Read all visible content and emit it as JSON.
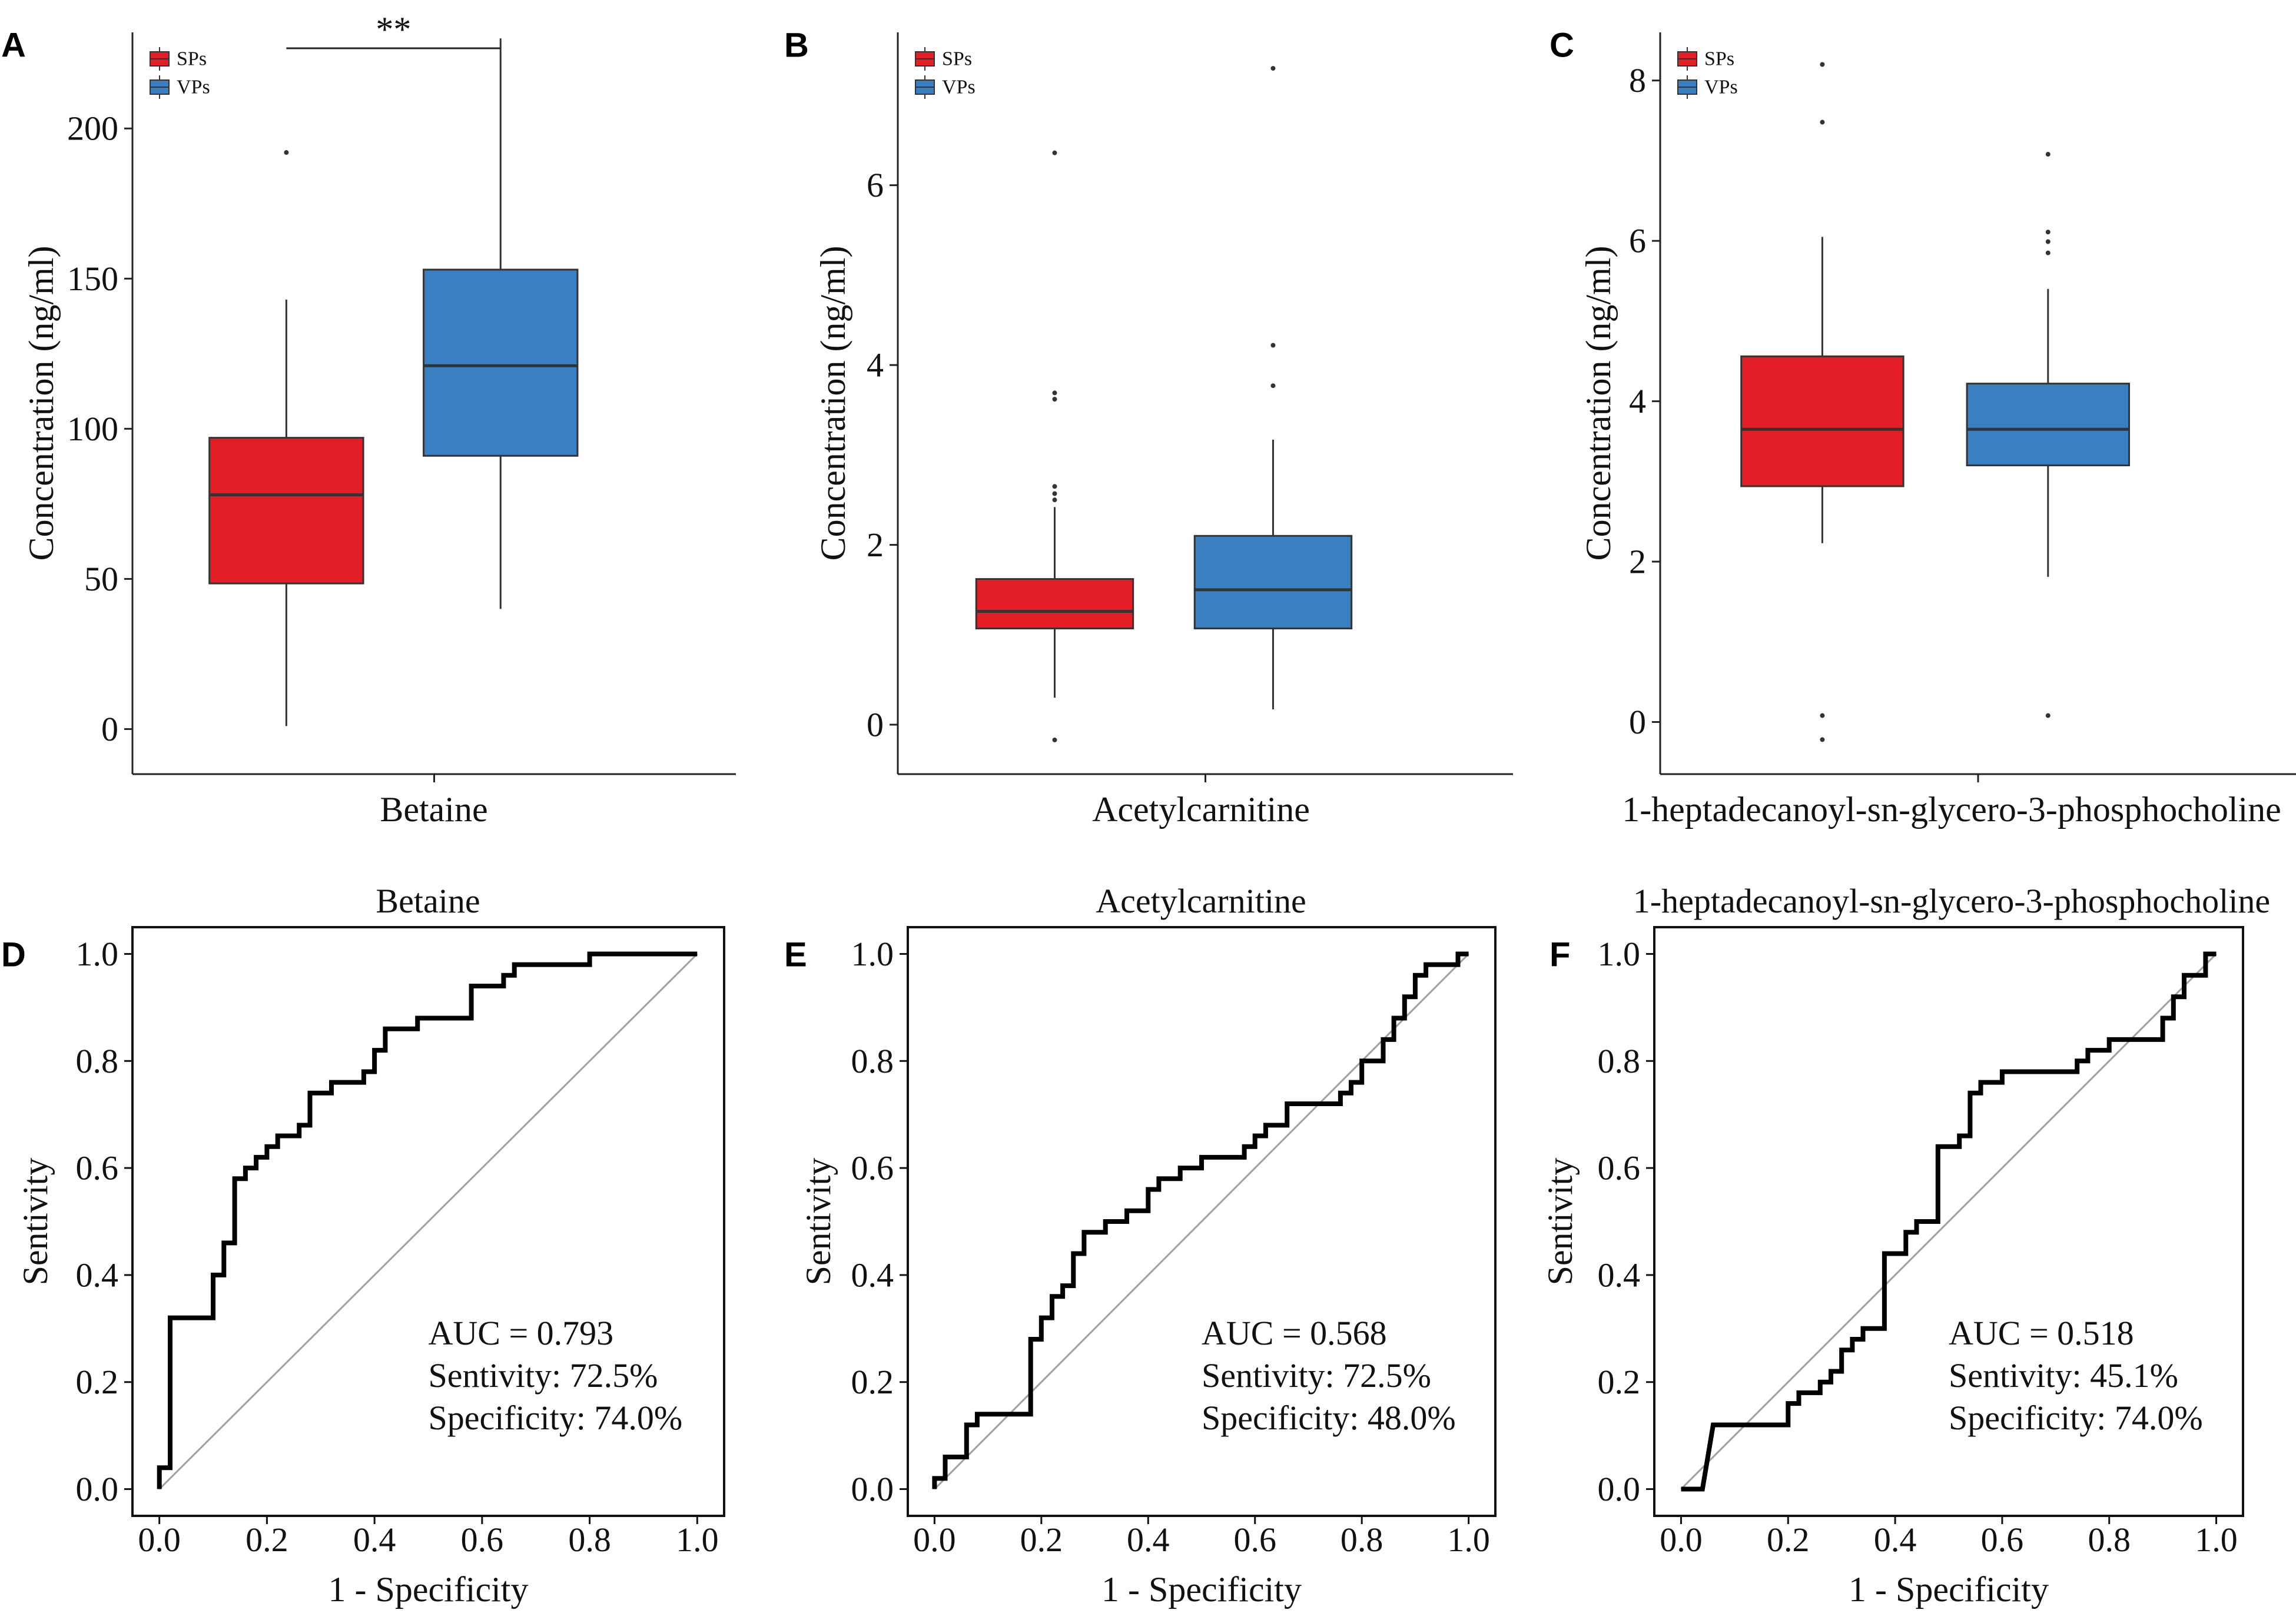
{
  "colors": {
    "sps": "#e41e26",
    "vps": "#3a7fc1",
    "median": "#333333",
    "diag": "#a0a0a0",
    "roc": "#000000"
  },
  "chart_data": [
    {
      "panel": "A",
      "type": "box",
      "xlabel": "Betaine",
      "ylabel": "Concentration (ng/ml)",
      "ylim": [
        -15,
        232
      ],
      "yticks": [
        0,
        50,
        100,
        150,
        200
      ],
      "legend": [
        "SPs",
        "VPs"
      ],
      "significance": "**",
      "groups": [
        {
          "name": "SPs",
          "q1": 48.5,
          "median": 78,
          "q3": 97,
          "whisker_low": 1,
          "whisker_high": 143,
          "outliers": [
            192
          ]
        },
        {
          "name": "VPs",
          "q1": 91,
          "median": 121,
          "q3": 153,
          "whisker_low": 40,
          "whisker_high": 230,
          "outliers": []
        }
      ]
    },
    {
      "panel": "B",
      "type": "box",
      "xlabel": "Acetylcarnitine",
      "ylabel": "Concentration (ng/ml)",
      "ylim": [
        -0.55,
        7.7
      ],
      "yticks": [
        0,
        2,
        4,
        6
      ],
      "legend": [
        "SPs",
        "VPs"
      ],
      "groups": [
        {
          "name": "SPs",
          "q1": 1.07,
          "median": 1.26,
          "q3": 1.62,
          "whisker_low": 0.3,
          "whisker_high": 2.42,
          "outliers": [
            -0.17,
            2.5,
            2.57,
            2.65,
            3.62,
            3.69,
            6.36
          ]
        },
        {
          "name": "VPs",
          "q1": 1.07,
          "median": 1.5,
          "q3": 2.1,
          "whisker_low": 0.17,
          "whisker_high": 3.17,
          "outliers": [
            3.77,
            4.22,
            7.3
          ]
        }
      ]
    },
    {
      "panel": "C",
      "type": "box",
      "xlabel": "1-heptadecanoyl-sn-glycero-3-phosphocholine",
      "ylabel": "Concentration (ng/ml)",
      "ylim": [
        -0.65,
        8.6
      ],
      "yticks": [
        0,
        2,
        4,
        6,
        8
      ],
      "legend": [
        "SPs",
        "VPs"
      ],
      "groups": [
        {
          "name": "SPs",
          "q1": 2.94,
          "median": 3.65,
          "q3": 4.56,
          "whisker_low": 2.23,
          "whisker_high": 6.05,
          "outliers": [
            -0.22,
            0.08,
            7.48,
            8.2
          ]
        },
        {
          "name": "VPs",
          "q1": 3.2,
          "median": 3.65,
          "q3": 4.22,
          "whisker_low": 1.81,
          "whisker_high": 5.4,
          "outliers": [
            0.08,
            5.85,
            5.99,
            6.11,
            7.08
          ]
        }
      ]
    },
    {
      "panel": "D",
      "type": "line",
      "title": "Betaine",
      "xlabel": "1 - Specificity",
      "ylabel": "Sentivity",
      "xlim": [
        -0.05,
        1.05
      ],
      "ylim": [
        -0.05,
        1.05
      ],
      "xticks": [
        "0.0",
        "0.2",
        "0.4",
        "0.6",
        "0.8",
        "1.0"
      ],
      "yticks": [
        "0.0",
        "0.2",
        "0.4",
        "0.6",
        "0.8",
        "1.0"
      ],
      "auc": "AUC = 0.793",
      "sensitivity": "Sentivity: 72.5%",
      "specificity": "Specificity: 74.0%",
      "x": [
        0,
        0,
        0.02,
        0.02,
        0.1,
        0.1,
        0.12,
        0.12,
        0.14,
        0.14,
        0.16,
        0.16,
        0.18,
        0.18,
        0.2,
        0.2,
        0.22,
        0.22,
        0.26,
        0.26,
        0.28,
        0.28,
        0.32,
        0.32,
        0.38,
        0.38,
        0.4,
        0.4,
        0.42,
        0.42,
        0.48,
        0.48,
        0.58,
        0.58,
        0.64,
        0.64,
        0.66,
        0.66,
        0.8,
        0.8,
        1.0
      ],
      "y": [
        0,
        0.04,
        0.04,
        0.32,
        0.32,
        0.4,
        0.4,
        0.46,
        0.46,
        0.58,
        0.58,
        0.6,
        0.6,
        0.62,
        0.62,
        0.64,
        0.64,
        0.66,
        0.66,
        0.68,
        0.68,
        0.74,
        0.74,
        0.76,
        0.76,
        0.78,
        0.78,
        0.82,
        0.82,
        0.86,
        0.86,
        0.88,
        0.88,
        0.94,
        0.94,
        0.96,
        0.96,
        0.98,
        0.98,
        1.0,
        1.0
      ]
    },
    {
      "panel": "E",
      "type": "line",
      "title": "Acetylcarnitine",
      "xlabel": "1 - Specificity",
      "ylabel": "Sentivity",
      "xlim": [
        -0.05,
        1.05
      ],
      "ylim": [
        -0.05,
        1.05
      ],
      "xticks": [
        "0.0",
        "0.2",
        "0.4",
        "0.6",
        "0.8",
        "1.0"
      ],
      "yticks": [
        "0.0",
        "0.2",
        "0.4",
        "0.6",
        "0.8",
        "1.0"
      ],
      "auc": "AUC = 0.568",
      "sensitivity": "Sentivity: 72.5%",
      "specificity": "Specificity: 48.0%",
      "x": [
        0,
        0,
        0.02,
        0.02,
        0.06,
        0.06,
        0.08,
        0.08,
        0.18,
        0.18,
        0.2,
        0.2,
        0.22,
        0.22,
        0.24,
        0.24,
        0.26,
        0.26,
        0.28,
        0.28,
        0.32,
        0.32,
        0.36,
        0.36,
        0.4,
        0.4,
        0.42,
        0.42,
        0.46,
        0.46,
        0.5,
        0.5,
        0.58,
        0.58,
        0.6,
        0.6,
        0.62,
        0.62,
        0.66,
        0.66,
        0.76,
        0.76,
        0.78,
        0.78,
        0.8,
        0.8,
        0.84,
        0.84,
        0.86,
        0.86,
        0.88,
        0.88,
        0.9,
        0.9,
        0.92,
        0.92,
        0.98,
        0.98,
        1.0
      ],
      "y": [
        0,
        0.02,
        0.02,
        0.06,
        0.06,
        0.12,
        0.12,
        0.14,
        0.14,
        0.28,
        0.28,
        0.32,
        0.32,
        0.36,
        0.36,
        0.38,
        0.38,
        0.44,
        0.44,
        0.48,
        0.48,
        0.5,
        0.5,
        0.52,
        0.52,
        0.56,
        0.56,
        0.58,
        0.58,
        0.6,
        0.6,
        0.62,
        0.62,
        0.64,
        0.64,
        0.66,
        0.66,
        0.68,
        0.68,
        0.72,
        0.72,
        0.74,
        0.74,
        0.76,
        0.76,
        0.8,
        0.8,
        0.84,
        0.84,
        0.88,
        0.88,
        0.92,
        0.92,
        0.96,
        0.96,
        0.98,
        0.98,
        1.0,
        1.0
      ]
    },
    {
      "panel": "F",
      "type": "line",
      "title": "1-heptadecanoyl-sn-glycero-3-phosphocholine",
      "xlabel": "1 - Specificity",
      "ylabel": "Sentivity",
      "xlim": [
        -0.05,
        1.05
      ],
      "ylim": [
        -0.05,
        1.05
      ],
      "xticks": [
        "0.0",
        "0.2",
        "0.4",
        "0.6",
        "0.8",
        "1.0"
      ],
      "yticks": [
        "0.0",
        "0.2",
        "0.4",
        "0.6",
        "0.8",
        "1.0"
      ],
      "auc": "AUC = 0.518",
      "sensitivity": "Sentivity: 45.1%",
      "specificity": "Specificity: 74.0%",
      "x": [
        0,
        0.04,
        0.06,
        0.2,
        0.2,
        0.22,
        0.22,
        0.26,
        0.26,
        0.28,
        0.28,
        0.3,
        0.3,
        0.32,
        0.32,
        0.34,
        0.34,
        0.38,
        0.38,
        0.42,
        0.42,
        0.44,
        0.44,
        0.46,
        0.46,
        0.48,
        0.48,
        0.52,
        0.52,
        0.54,
        0.54,
        0.56,
        0.56,
        0.6,
        0.6,
        0.64,
        0.64,
        0.74,
        0.74,
        0.76,
        0.76,
        0.8,
        0.8,
        0.86,
        0.86,
        0.9,
        0.9,
        0.92,
        0.92,
        0.94,
        0.94,
        0.98,
        0.98,
        1.0
      ],
      "y": [
        0,
        0,
        0.12,
        0.12,
        0.16,
        0.16,
        0.18,
        0.18,
        0.2,
        0.2,
        0.22,
        0.22,
        0.26,
        0.26,
        0.28,
        0.28,
        0.3,
        0.3,
        0.44,
        0.44,
        0.48,
        0.48,
        0.5,
        0.5,
        0.5,
        0.5,
        0.64,
        0.64,
        0.66,
        0.66,
        0.74,
        0.74,
        0.76,
        0.76,
        0.78,
        0.78,
        0.78,
        0.78,
        0.8,
        0.8,
        0.82,
        0.82,
        0.84,
        0.84,
        0.84,
        0.84,
        0.88,
        0.88,
        0.92,
        0.92,
        0.96,
        0.96,
        1.0,
        1.0
      ]
    }
  ]
}
